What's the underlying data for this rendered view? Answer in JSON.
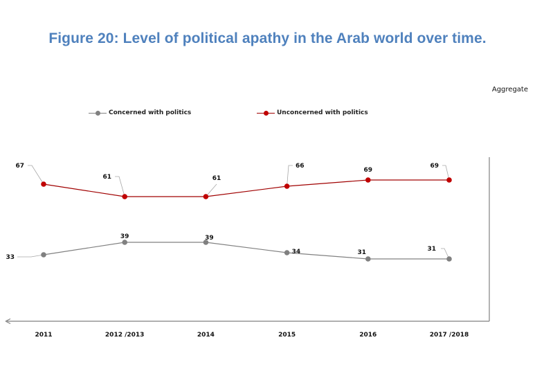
{
  "title": "Figure 20: Level of political apathy in the Arab world over time.",
  "chart_data": {
    "type": "line",
    "title": "Figure 20: Level of political apathy in the Arab world over time.",
    "subtitle": "Aggregate",
    "xlabel": "",
    "ylabel": "",
    "categories": [
      "2011",
      "2012 /2013",
      "2014",
      "2015",
      "2016",
      "2017 /2018"
    ],
    "series": [
      {
        "name": "Concerned with politics",
        "color": "#808080",
        "values": [
          33,
          39,
          39,
          34,
          31,
          31
        ]
      },
      {
        "name": "Unconcerned with politics",
        "color": "#c00000",
        "values": [
          67,
          61,
          61,
          66,
          69,
          69
        ]
      }
    ],
    "ylim": [
      0,
      79
    ],
    "grid": false,
    "legend": "top",
    "data_labels": true
  },
  "colors": {
    "title": "#4f81bd",
    "axis": "#808080",
    "concerned": "#808080",
    "unconcerned": "#c00000",
    "unconcerned_line": "#a00000"
  }
}
